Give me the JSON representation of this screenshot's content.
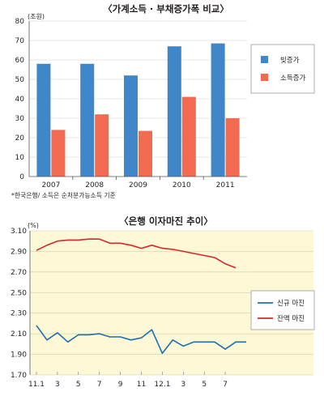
{
  "chart_data": [
    {
      "type": "bar",
      "title": "〈가계소득 · 부채증가폭 비교〉",
      "unit": "(조원)",
      "categories": [
        "2007",
        "2008",
        "2009",
        "2010",
        "2011"
      ],
      "series": [
        {
          "name": "빚증가",
          "color": "#3f87c8",
          "values": [
            58,
            58,
            52,
            67,
            68.5
          ]
        },
        {
          "name": "소득증가",
          "color": "#f26b51",
          "values": [
            24,
            32,
            23.5,
            41,
            30
          ]
        }
      ],
      "yticks": [
        0,
        10,
        20,
        30,
        40,
        50,
        60,
        70,
        80
      ],
      "ylim": [
        0,
        80
      ],
      "legend_position": "right",
      "footnote": "*한국은행/ 소득은 순처분가능소득 기준"
    },
    {
      "type": "line",
      "title": "〈은행 이자마진 추이〉",
      "unit": "(%)",
      "x_labels": [
        "11.1",
        "3",
        "5",
        "7",
        "9",
        "11",
        "12.1",
        "3",
        "5",
        "7"
      ],
      "yticks": [
        "1.70",
        "1.90",
        "2.10",
        "2.30",
        "2.50",
        "2.70",
        "2.90",
        "3.10"
      ],
      "ylim": [
        1.7,
        3.1
      ],
      "background_color": "#fdf8d5",
      "legend_position": "right",
      "series": [
        {
          "name": "신규 마진",
          "color": "#1f6fb2",
          "values": [
            2.18,
            2.04,
            2.11,
            2.02,
            2.09,
            2.09,
            2.1,
            2.07,
            2.07,
            2.04,
            2.06,
            2.14,
            1.91,
            2.04,
            1.98,
            2.02,
            2.02,
            2.02,
            1.95,
            2.02,
            2.02
          ]
        },
        {
          "name": "잔액 마진",
          "color": "#d9272e",
          "values": [
            2.91,
            2.96,
            3.0,
            3.01,
            3.01,
            3.02,
            3.02,
            2.98,
            2.98,
            2.96,
            2.93,
            2.96,
            2.93,
            2.92,
            2.9,
            2.88,
            2.86,
            2.84,
            2.78,
            2.74
          ]
        }
      ]
    }
  ]
}
